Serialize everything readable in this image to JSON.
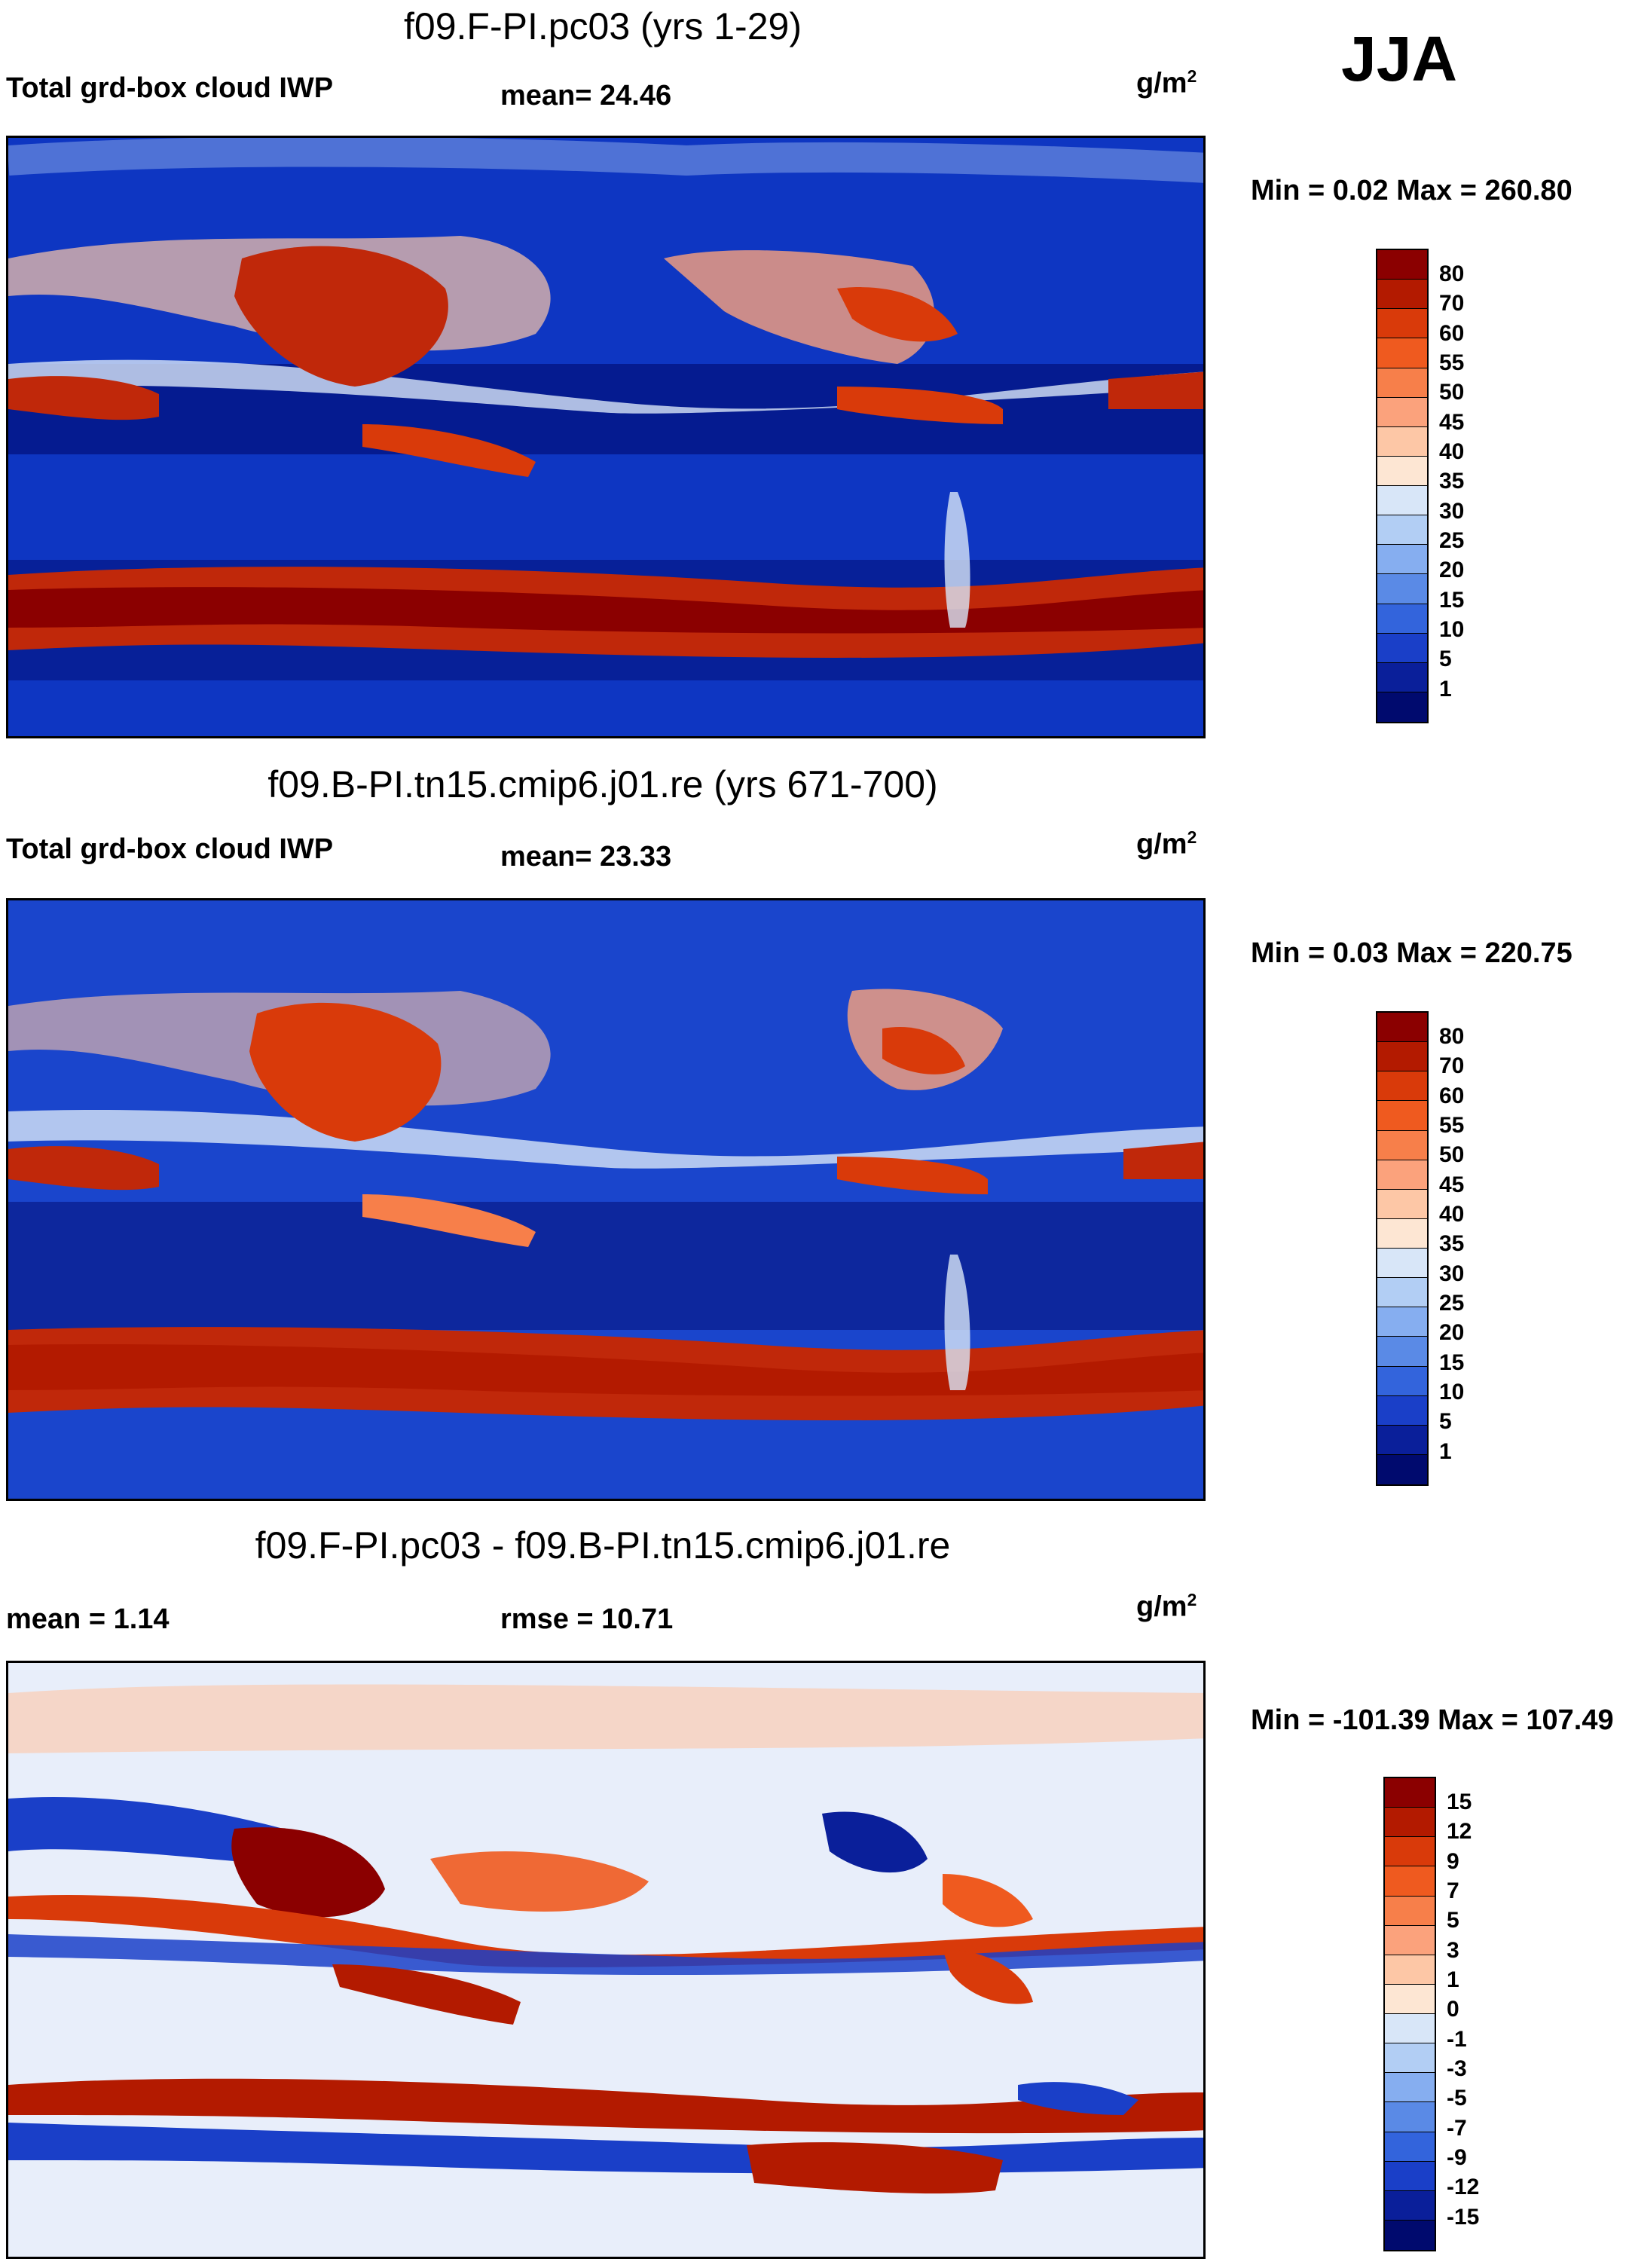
{
  "season": "JJA",
  "units_base": "g/m",
  "units_exp": "2",
  "panels": [
    {
      "title": "f09.F-PI.pc03 (yrs 1-29)",
      "left_label": "Total grd-box cloud IWP",
      "stat_label": "mean=  24.46",
      "minmax": "Min =   0.02 Max = 260.80",
      "colorbar_levels": [
        "80",
        "70",
        "60",
        "55",
        "50",
        "45",
        "40",
        "35",
        "30",
        "25",
        "20",
        "15",
        "10",
        "5",
        "1"
      ]
    },
    {
      "title": "f09.B-PI.tn15.cmip6.j01.re (yrs 671-700)",
      "left_label": "Total grd-box cloud IWP",
      "stat_label": "mean=  23.33",
      "minmax": "Min =   0.03 Max = 220.75",
      "colorbar_levels": [
        "80",
        "70",
        "60",
        "55",
        "50",
        "45",
        "40",
        "35",
        "30",
        "25",
        "20",
        "15",
        "10",
        "5",
        "1"
      ]
    },
    {
      "title": "f09.F-PI.pc03 - f09.B-PI.tn15.cmip6.j01.re",
      "left_label": "mean =   1.14",
      "stat_label": "rmse =  10.71",
      "minmax": "Min = -101.39 Max = 107.49",
      "colorbar_levels": [
        "15",
        "12",
        "9",
        "7",
        "5",
        "3",
        "1",
        "0",
        "-1",
        "-3",
        "-5",
        "-7",
        "-9",
        "-12",
        "-15"
      ]
    }
  ],
  "colors": {
    "abs_scale": [
      "#8b0000",
      "#b31a00",
      "#d93a0a",
      "#ef5a1f",
      "#f77f4a",
      "#fba27c",
      "#fdc7a6",
      "#fde6d3",
      "#d8e6f8",
      "#b2cef4",
      "#86aef0",
      "#5a8ae6",
      "#3364dc",
      "#1a3fc8",
      "#0a1f9a",
      "#000a6e"
    ],
    "diff_scale": [
      "#8b0000",
      "#b31a00",
      "#d93a0a",
      "#ef5a1f",
      "#f77f4a",
      "#fba27c",
      "#fdc7a6",
      "#fde6d3",
      "#d8e6f8",
      "#b2cef4",
      "#86aef0",
      "#5a8ae6",
      "#3364dc",
      "#1a3fc8",
      "#0a1f9a",
      "#000a6e"
    ]
  }
}
